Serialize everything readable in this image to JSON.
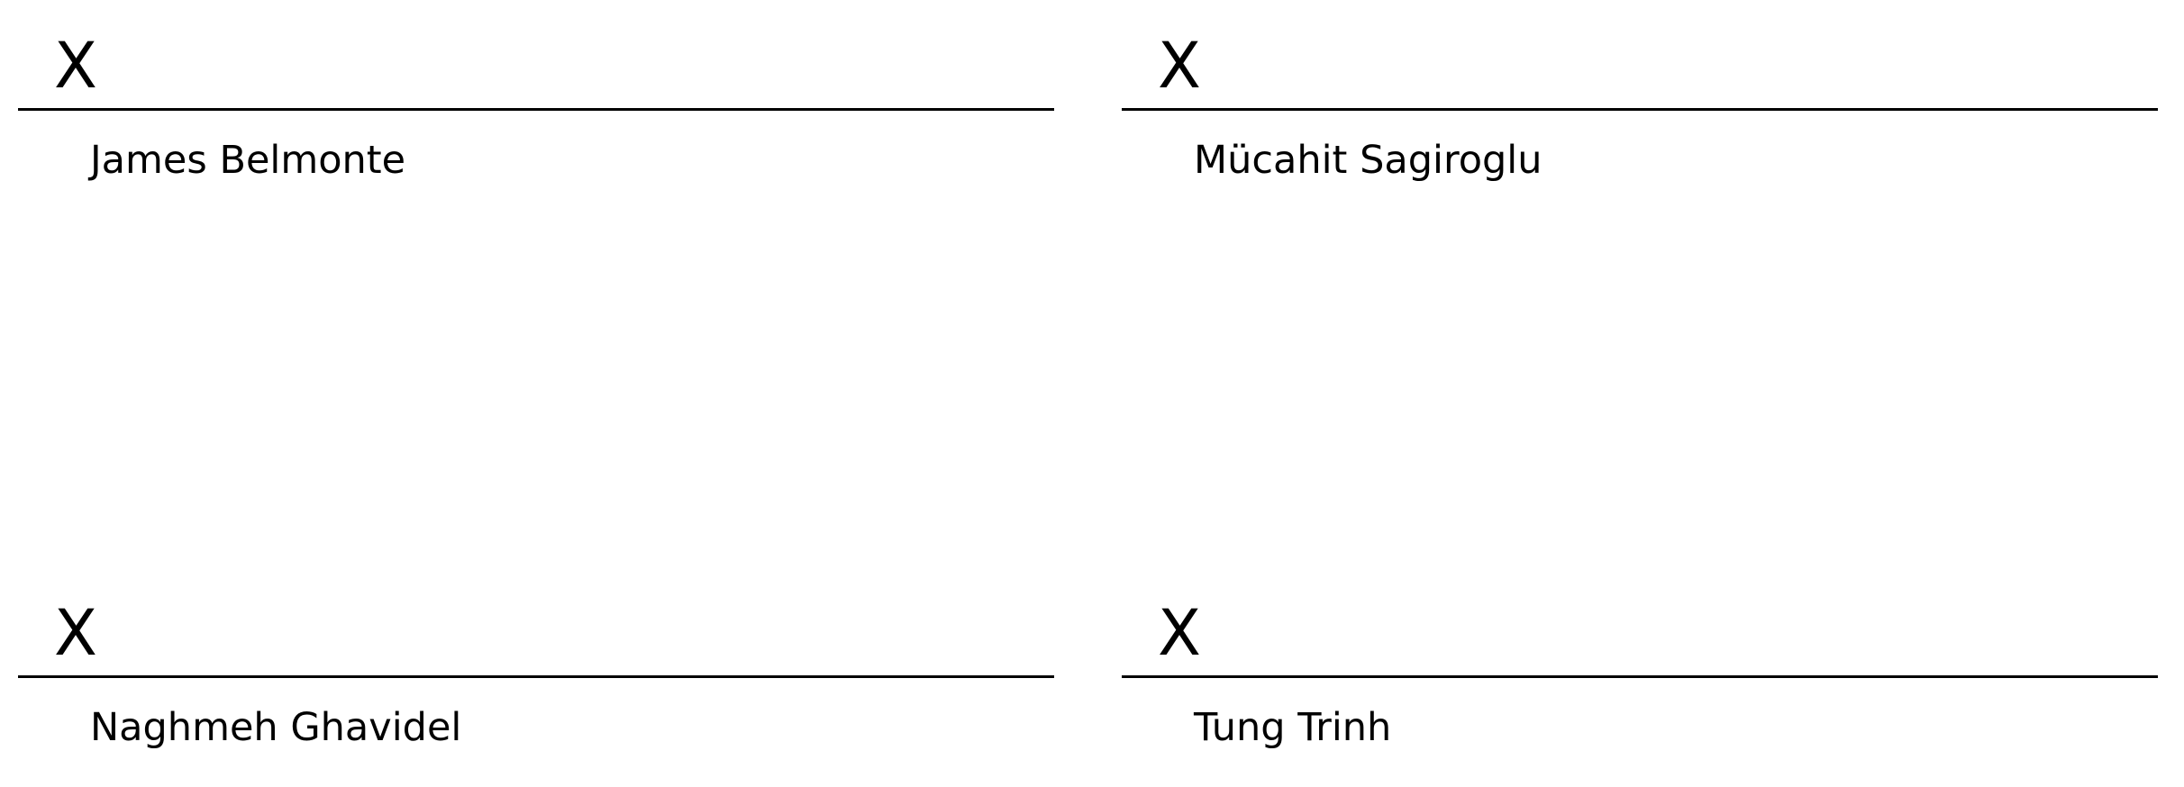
{
  "signature_blocks": [
    {
      "mark": "X",
      "name": "James Belmonte"
    },
    {
      "mark": "X",
      "name": "Mücahit Sagiroglu"
    },
    {
      "mark": "X",
      "name": "Naghmeh Ghavidel"
    },
    {
      "mark": "X",
      "name": "Tung Trinh"
    }
  ]
}
